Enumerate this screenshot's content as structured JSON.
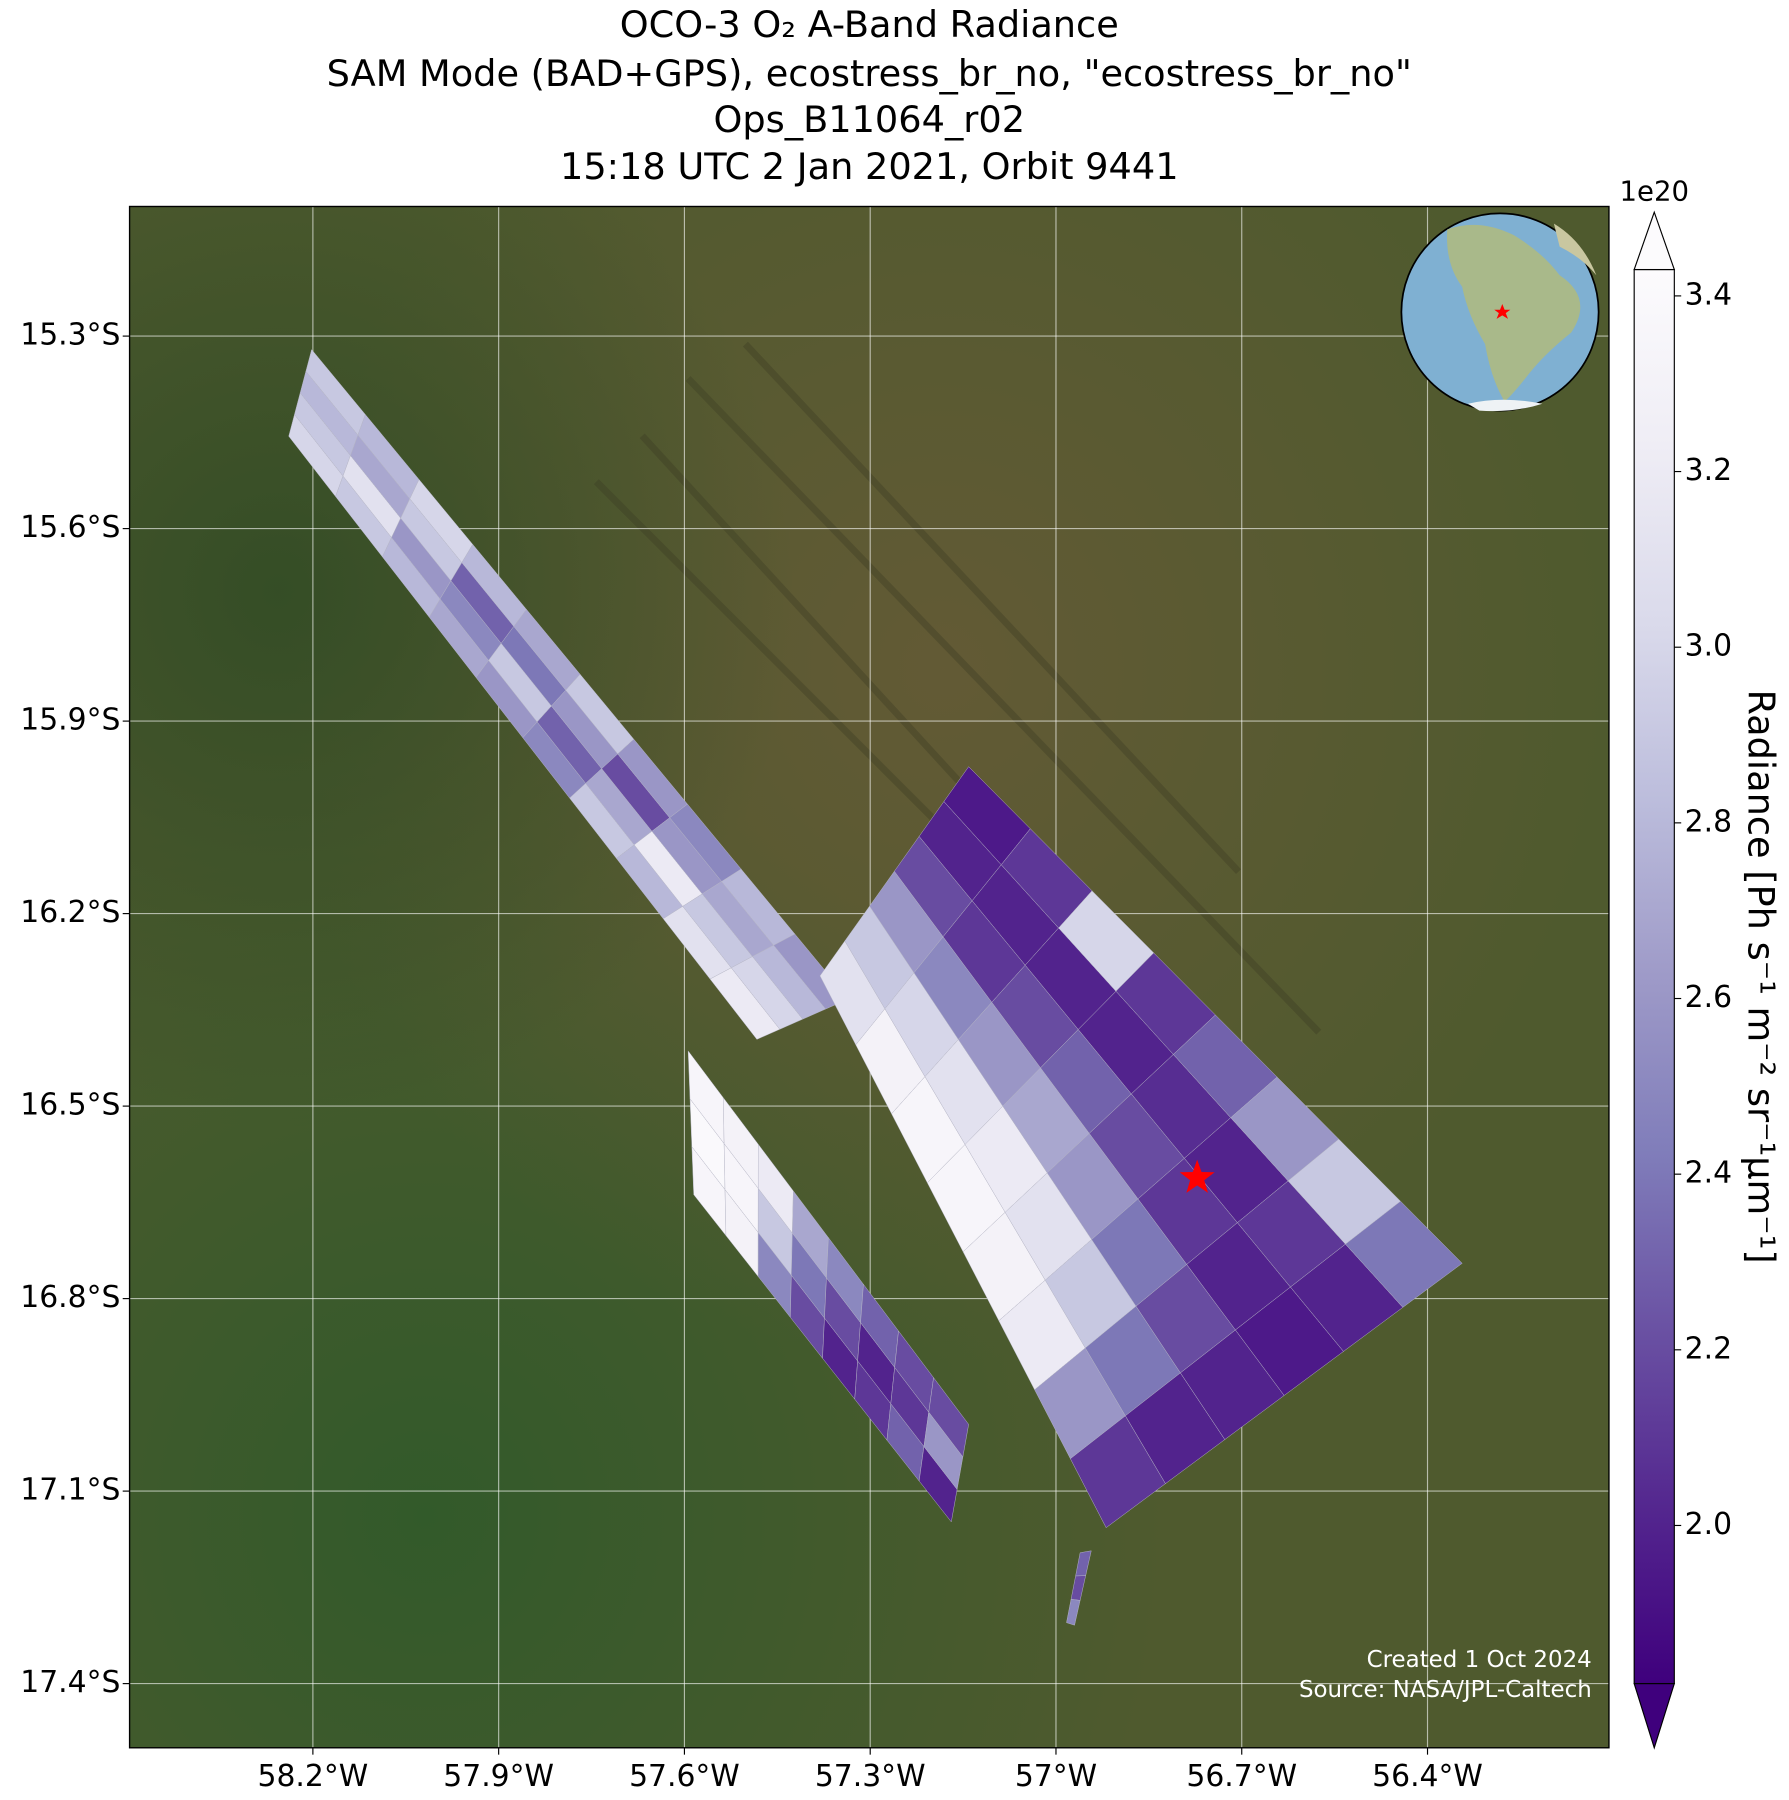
{
  "chart_data": {
    "type": "map",
    "title": [
      "OCO-3 O₂ A-Band Radiance",
      "SAM Mode (BAD+GPS), ecostress_br_no, \"ecostress_br_no\"",
      "Ops_B11064_r02",
      "15:18 UTC 2 Jan 2021, Orbit 9441"
    ],
    "xlim": [
      -58.496,
      -56.107
    ],
    "ylim": [
      -17.5,
      -15.098
    ],
    "xticks": [
      {
        "value": -58.2,
        "label": "58.2°W"
      },
      {
        "value": -57.9,
        "label": "57.9°W"
      },
      {
        "value": -57.6,
        "label": "57.6°W"
      },
      {
        "value": -57.3,
        "label": "57.3°W"
      },
      {
        "value": -57,
        "label": "57°W"
      },
      {
        "value": -56.7,
        "label": "56.7°W"
      },
      {
        "value": -56.4,
        "label": "56.4°W"
      }
    ],
    "yticks": [
      {
        "value": -15.3,
        "label": "15.3°S"
      },
      {
        "value": -15.6,
        "label": "15.6°S"
      },
      {
        "value": -15.9,
        "label": "15.9°S"
      },
      {
        "value": -16.2,
        "label": "16.2°S"
      },
      {
        "value": -16.5,
        "label": "16.5°S"
      },
      {
        "value": -16.8,
        "label": "16.8°S"
      },
      {
        "value": -17.1,
        "label": "17.1°S"
      },
      {
        "value": -17.4,
        "label": "17.4°S"
      }
    ],
    "grid": true,
    "swaths": [
      {
        "corners": [
          [
            -58.239,
            -15.456
          ],
          [
            -58.202,
            -15.321
          ],
          [
            -57.335,
            -16.333
          ],
          [
            -57.483,
            -16.396
          ]
        ],
        "values": [
          [
            3.0,
            2.9,
            2.8,
            2.9
          ],
          [
            2.9,
            3.1,
            2.7,
            2.8
          ],
          [
            2.8,
            2.6,
            2.9,
            3.0
          ],
          [
            2.7,
            2.5,
            2.3,
            2.8
          ],
          [
            2.6,
            2.9,
            2.4,
            2.7
          ],
          [
            2.5,
            2.3,
            2.6,
            2.9
          ],
          [
            2.9,
            2.7,
            2.2,
            2.6
          ],
          [
            2.8,
            3.2,
            2.6,
            2.5
          ],
          [
            3.1,
            2.9,
            2.7,
            2.8
          ],
          [
            3.2,
            3.0,
            2.8,
            2.6
          ]
        ]
      },
      {
        "corners": [
          [
            -57.381,
            -16.297
          ],
          [
            -57.141,
            -15.971
          ],
          [
            -56.344,
            -16.745
          ],
          [
            -56.919,
            -17.157
          ]
        ],
        "values": [
          [
            3.1,
            2.9,
            2.6,
            2.2,
            2.0,
            1.95
          ],
          [
            3.3,
            3.0,
            2.5,
            2.1,
            2.0,
            2.1
          ],
          [
            3.35,
            3.1,
            2.6,
            2.2,
            2.0,
            3.0
          ],
          [
            3.35,
            3.2,
            2.7,
            2.3,
            2.0,
            2.1
          ],
          [
            3.3,
            3.1,
            2.6,
            2.2,
            2.05,
            2.3
          ],
          [
            3.2,
            2.9,
            2.4,
            2.1,
            2.0,
            2.6
          ],
          [
            2.6,
            2.4,
            2.2,
            2.0,
            2.1,
            2.9
          ],
          [
            2.1,
            2.0,
            2.0,
            1.95,
            2.0,
            2.4
          ]
        ]
      },
      {
        "corners": [
          [
            -57.585,
            -16.638
          ],
          [
            -57.594,
            -16.414
          ],
          [
            -57.141,
            -16.996
          ],
          [
            -57.169,
            -17.148
          ]
        ],
        "values": [
          [
            3.35,
            3.4,
            3.35
          ],
          [
            3.3,
            3.35,
            3.3
          ],
          [
            2.5,
            2.9,
            3.2
          ],
          [
            2.2,
            2.4,
            2.7
          ],
          [
            2.0,
            2.2,
            2.5
          ],
          [
            2.1,
            2.0,
            2.3
          ],
          [
            2.3,
            2.1,
            2.2
          ],
          [
            2.0,
            2.6,
            2.2
          ]
        ]
      },
      {
        "corners": [
          [
            -56.961,
            -17.196
          ],
          [
            -56.943,
            -17.193
          ],
          [
            -56.97,
            -17.309
          ],
          [
            -56.983,
            -17.305
          ]
        ],
        "values": [
          [
            2.3
          ],
          [
            2.2
          ],
          [
            2.5
          ]
        ]
      }
    ],
    "target": {
      "lon": -56.772,
      "lat": -16.612,
      "color": "#ff0000"
    },
    "colorbar": {
      "label": "Radiance [Ph s⁻¹ m⁻² sr⁻¹μm⁻¹]",
      "offset_label": "1e20",
      "clim": [
        1.82,
        3.43
      ],
      "extend": "both",
      "ticks": [
        {
          "value": 2,
          "label": "2.0"
        },
        2.2,
        2.4,
        2.6,
        2.8,
        {
          "value": 3,
          "label": "3.0"
        },
        3.2,
        3.4
      ],
      "colormap": [
        "#3f007d",
        "#54278f",
        "#6a51a3",
        "#807dba",
        "#9e9ac8",
        "#bcbddc",
        "#dadaeb",
        "#efedf5",
        "#fcfbfd"
      ]
    },
    "annotations": [
      "Created 1 Oct 2024",
      "Source: NASA/JPL-Caltech"
    ]
  }
}
